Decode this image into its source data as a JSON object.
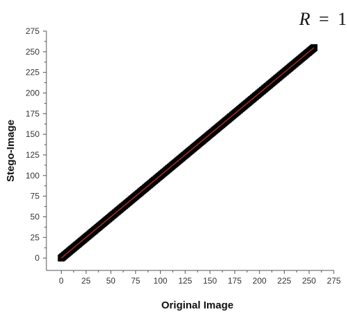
{
  "chart_data": {
    "type": "scatter",
    "xlabel": "Original Image",
    "ylabel": "Stego-Image",
    "annotation": {
      "variable": "R",
      "equals": "=",
      "value": "1"
    },
    "xlim": [
      -15,
      275
    ],
    "ylim": [
      -15,
      275
    ],
    "xticks": [
      0,
      25,
      50,
      75,
      100,
      125,
      150,
      175,
      200,
      225,
      250,
      275
    ],
    "yticks": [
      0,
      25,
      50,
      75,
      100,
      125,
      150,
      175,
      200,
      225,
      250,
      275
    ],
    "grid": false,
    "series": [
      {
        "marker_color": "#000000",
        "x_range": [
          0,
          255
        ],
        "y_range": [
          0,
          255
        ]
      }
    ],
    "fit_line": {
      "x": [
        0,
        255
      ],
      "y": [
        0,
        255
      ],
      "color": "#c0302a"
    }
  }
}
